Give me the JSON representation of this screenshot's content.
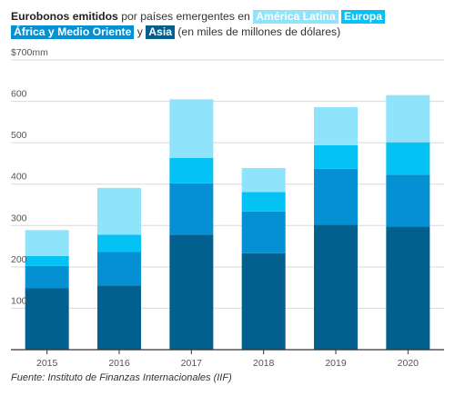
{
  "title": {
    "bold": "Eurobonos emitidos",
    "lead": "por países emergentes en",
    "connector": "y",
    "tail": "(en miles de millones de dólares)"
  },
  "source": "Fuente: Instituto de Finanzas Internacionales (IIF)",
  "colors": {
    "america_latina": "#8fe3fb",
    "europa": "#05c2f4",
    "africa_medio_oriente": "#0490d2",
    "asia": "#02608f",
    "grid": "#d9d9d9",
    "axis": "#333333"
  },
  "chart_data": {
    "type": "bar",
    "stacked": true,
    "categories": [
      "2015",
      "2016",
      "2017",
      "2018",
      "2019",
      "2020"
    ],
    "series": [
      {
        "name": "Asia",
        "values": [
          149,
          155,
          278,
          233,
          302,
          298
        ]
      },
      {
        "name": "África y Medio Oriente",
        "values": [
          53,
          81,
          124,
          101,
          135,
          125
        ]
      },
      {
        "name": "Europa",
        "values": [
          24,
          42,
          61,
          47,
          57,
          78
        ]
      },
      {
        "name": "América Latina",
        "values": [
          63,
          113,
          142,
          58,
          92,
          114
        ]
      }
    ],
    "ylim": [
      0,
      700
    ],
    "yticks": [
      {
        "value": 100,
        "label": "100"
      },
      {
        "value": 200,
        "label": "200"
      },
      {
        "value": 300,
        "label": "300"
      },
      {
        "value": 400,
        "label": "400"
      },
      {
        "value": 500,
        "label": "500"
      },
      {
        "value": 600,
        "label": "600"
      },
      {
        "value": 700,
        "label": "$700mm"
      }
    ],
    "grid": true,
    "legend": "inline-title"
  }
}
